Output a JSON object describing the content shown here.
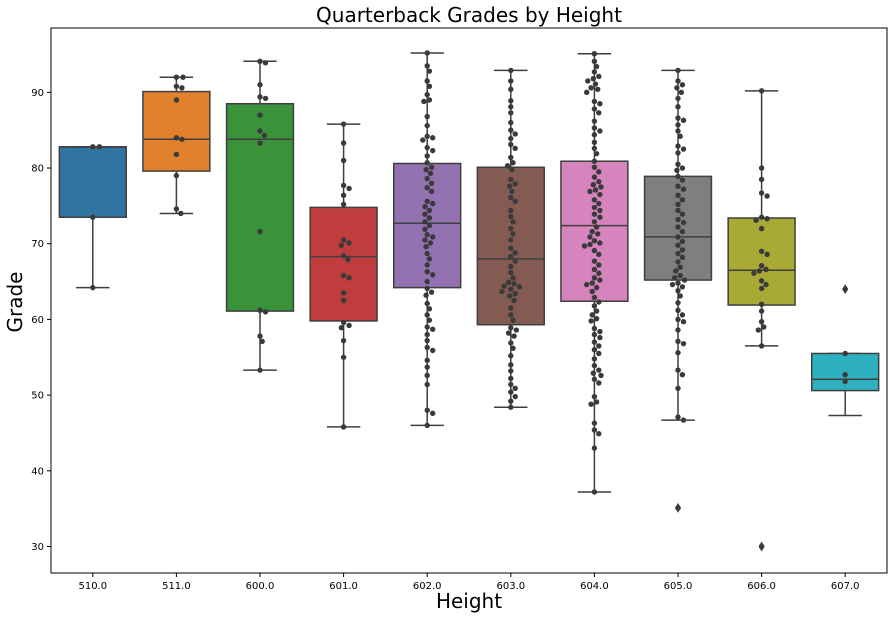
{
  "chart_data": {
    "type": "box",
    "title": "Quarterback Grades by Height",
    "xlabel": "Height",
    "ylabel": "Grade",
    "ylim": [
      26.5,
      98.5
    ],
    "yticks": [
      30,
      40,
      50,
      60,
      70,
      80,
      90
    ],
    "grid": false,
    "overlay": "swarm",
    "categories": [
      "510.0",
      "511.0",
      "600.0",
      "601.0",
      "602.0",
      "603.0",
      "604.0",
      "605.0",
      "606.0",
      "607.0"
    ],
    "colors": [
      "#3274a1",
      "#e1812c",
      "#3a923a",
      "#c03d3e",
      "#9372b2",
      "#845b53",
      "#d684bd",
      "#7f7f7f",
      "#a9aa35",
      "#2eb0c0"
    ],
    "boxes": [
      {
        "category": "510.0",
        "q1": 73.5,
        "median": 82.8,
        "q3": 82.8,
        "whisker_low": 64.2,
        "whisker_high": 82.8,
        "outliers": []
      },
      {
        "category": "511.0",
        "q1": 79.6,
        "median": 83.8,
        "q3": 90.1,
        "whisker_low": 74.0,
        "whisker_high": 92.0,
        "outliers": []
      },
      {
        "category": "600.0",
        "q1": 61.1,
        "median": 83.8,
        "q3": 88.5,
        "whisker_low": 53.3,
        "whisker_high": 94.1,
        "outliers": []
      },
      {
        "category": "601.0",
        "q1": 59.8,
        "median": 68.3,
        "q3": 74.8,
        "whisker_low": 45.8,
        "whisker_high": 85.8,
        "outliers": []
      },
      {
        "category": "602.0",
        "q1": 64.2,
        "median": 72.7,
        "q3": 80.6,
        "whisker_low": 46.0,
        "whisker_high": 95.2,
        "outliers": []
      },
      {
        "category": "603.0",
        "q1": 59.3,
        "median": 68.0,
        "q3": 80.1,
        "whisker_low": 48.4,
        "whisker_high": 92.9,
        "outliers": []
      },
      {
        "category": "604.0",
        "q1": 62.4,
        "median": 72.4,
        "q3": 80.9,
        "whisker_low": 37.2,
        "whisker_high": 95.1,
        "outliers": []
      },
      {
        "category": "605.0",
        "q1": 65.2,
        "median": 70.9,
        "q3": 78.9,
        "whisker_low": 46.7,
        "whisker_high": 92.9,
        "outliers": [
          35.1
        ]
      },
      {
        "category": "606.0",
        "q1": 61.9,
        "median": 66.5,
        "q3": 73.4,
        "whisker_low": 56.5,
        "whisker_high": 90.2,
        "outliers": [
          30.0
        ]
      },
      {
        "category": "607.0",
        "q1": 50.6,
        "median": 52.1,
        "q3": 55.5,
        "whisker_low": 47.3,
        "whisker_high": 55.5,
        "outliers": [
          64.0
        ]
      }
    ],
    "points": [
      [
        82.8,
        82.8,
        64.2,
        73.5
      ],
      [
        92.0,
        92.0,
        90.8,
        90.6,
        89.0,
        84.0,
        83.8,
        81.8,
        79.0,
        74.6,
        74.0
      ],
      [
        94.1,
        93.9,
        91.0,
        89.4,
        89.2,
        87.0,
        84.9,
        84.3,
        83.3,
        71.6,
        61.2,
        61.0,
        57.8,
        57.1,
        53.3
      ],
      [
        85.8,
        83.3,
        81.0,
        77.7,
        77.3,
        76.4,
        75.2,
        70.5,
        70.1,
        69.8,
        68.4,
        67.9,
        65.8,
        65.5,
        63.5,
        62.5,
        59.6,
        59.2,
        58.9,
        57.2,
        55.0,
        45.8
      ],
      [
        95.2,
        93.5,
        92.8,
        91.5,
        90.8,
        89.7,
        89.0,
        88.8,
        86.8,
        85.6,
        84.2,
        84.0,
        83.7,
        82.7,
        82.3,
        81.6,
        80.7,
        80.1,
        79.8,
        79.3,
        78.6,
        78.0,
        77.4,
        76.9,
        75.6,
        75.3,
        74.9,
        74.4,
        73.9,
        73.4,
        72.9,
        72.4,
        71.9,
        71.2,
        70.9,
        70.5,
        70.1,
        69.6,
        68.7,
        68.0,
        67.2,
        66.3,
        65.9,
        65.0,
        64.1,
        63.6,
        63.2,
        62.1,
        61.4,
        60.6,
        59.9,
        59.0,
        58.7,
        58.0,
        57.2,
        56.3,
        55.9,
        54.6,
        53.7,
        52.6,
        51.4,
        48.0,
        47.6,
        46.0
      ],
      [
        92.9,
        91.5,
        90.4,
        88.9,
        88.1,
        87.3,
        86.0,
        85.0,
        84.5,
        83.9,
        83.1,
        82.6,
        81.4,
        80.7,
        80.3,
        79.8,
        78.5,
        77.9,
        77.6,
        76.9,
        76.1,
        75.6,
        74.4,
        73.6,
        72.9,
        72.0,
        71.3,
        70.5,
        69.4,
        68.8,
        68.3,
        67.7,
        67.0,
        66.2,
        65.5,
        64.9,
        64.7,
        64.4,
        64.3,
        64.0,
        63.7,
        63.4,
        63.1,
        62.5,
        61.5,
        60.6,
        59.9,
        58.9,
        58.6,
        58.2,
        57.8,
        56.9,
        56.2,
        55.2,
        54.0,
        53.2,
        52.2,
        51.4,
        50.9,
        50.4,
        49.8,
        49.2,
        48.4
      ],
      [
        95.1,
        94.1,
        93.4,
        92.7,
        92.1,
        91.8,
        91.5,
        91.1,
        90.6,
        90.4,
        90.0,
        88.8,
        88.5,
        87.8,
        87.3,
        86.2,
        85.3,
        84.9,
        84.4,
        83.4,
        82.6,
        81.9,
        80.9,
        80.1,
        79.5,
        78.8,
        78.2,
        77.8,
        77.5,
        77.1,
        76.9,
        76.5,
        75.8,
        75.3,
        74.8,
        74.4,
        73.9,
        73.5,
        72.9,
        72.2,
        71.6,
        71.3,
        70.9,
        70.4,
        70.1,
        69.9,
        69.7,
        69.1,
        68.6,
        67.7,
        67.2,
        66.6,
        66.1,
        65.5,
        65.2,
        64.8,
        64.6,
        64.2,
        63.7,
        62.9,
        62.3,
        61.8,
        61.1,
        60.6,
        60.1,
        59.8,
        58.8,
        58.4,
        58.0,
        57.6,
        57.0,
        56.5,
        56.0,
        55.5,
        54.8,
        53.9,
        53.3,
        52.9,
        52.6,
        52.1,
        51.6,
        49.8,
        49.1,
        48.8,
        46.3,
        45.4,
        44.9,
        43.0,
        37.2
      ],
      [
        92.9,
        91.5,
        91.0,
        90.6,
        90.0,
        89.2,
        88.1,
        86.6,
        86.3,
        85.7,
        84.9,
        84.2,
        82.9,
        82.5,
        82.0,
        80.5,
        80.0,
        79.7,
        78.9,
        78.4,
        77.6,
        77.2,
        76.4,
        75.8,
        75.2,
        74.4,
        73.9,
        73.2,
        72.8,
        72.2,
        71.6,
        70.9,
        70.3,
        69.8,
        69.2,
        68.7,
        68.2,
        67.6,
        66.9,
        66.4,
        65.8,
        65.5,
        65.2,
        64.8,
        64.6,
        64.3,
        63.8,
        63.1,
        62.2,
        61.2,
        60.6,
        60.0,
        59.7,
        58.6,
        57.1,
        56.8,
        55.6,
        53.3,
        52.7,
        50.9,
        47.1,
        46.7,
        35.1
      ],
      [
        90.2,
        80.0,
        78.5,
        76.7,
        76.3,
        73.5,
        73.3,
        73.1,
        72.0,
        69.0,
        68.6,
        67.1,
        66.6,
        66.4,
        66.1,
        65.1,
        64.6,
        64.1,
        62.0,
        61.1,
        59.7,
        59.0,
        58.6,
        56.5,
        30.0
      ],
      [
        64.0,
        55.5,
        52.7,
        51.8
      ]
    ]
  }
}
